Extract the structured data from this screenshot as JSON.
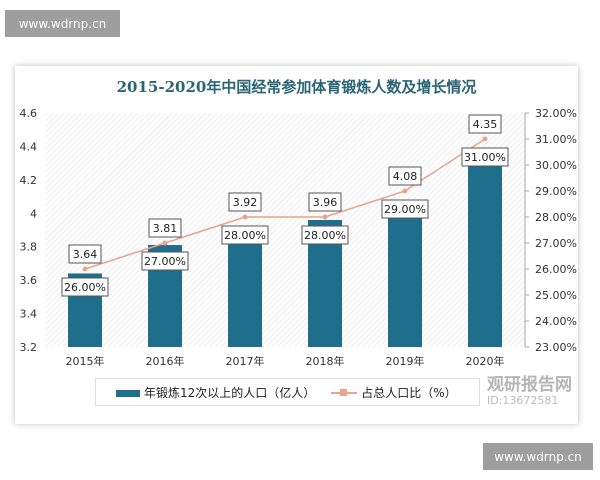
{
  "watermarks": {
    "top": "www.wdrnp.cn",
    "bottom": "www.wdrnp.cn",
    "logo": "观研报告网",
    "logo_id": "ID:13672581"
  },
  "colors": {
    "bar": "#1f6e8c",
    "line": "#e8a48c",
    "title": "#2a6475"
  },
  "chart_data": {
    "type": "bar+line",
    "title": "2015-2020年中国经常参加体育锻炼人数及增长情况",
    "categories": [
      "2015年",
      "2016年",
      "2017年",
      "2018年",
      "2019年",
      "2020年"
    ],
    "series": [
      {
        "name": "年锻炼12次以上的人口（亿人）",
        "type": "bar",
        "axis": "left",
        "values": [
          3.64,
          3.81,
          3.92,
          3.96,
          4.08,
          4.35
        ],
        "labels": [
          "3.64",
          "3.81",
          "3.92",
          "3.96",
          "4.08",
          "4.35"
        ]
      },
      {
        "name": "占总人口比（%）",
        "type": "line",
        "axis": "right",
        "values": [
          26,
          27,
          28,
          28,
          29,
          31
        ],
        "labels": [
          "26.00%",
          "27.00%",
          "28.00%",
          "28.00%",
          "29.00%",
          "31.00%"
        ]
      }
    ],
    "left_axis": {
      "range": [
        3.2,
        4.6
      ],
      "ticks": [
        "3.2",
        "3.4",
        "3.6",
        "3.8",
        "4",
        "4.2",
        "4.4",
        "4.6"
      ]
    },
    "right_axis": {
      "range": [
        23,
        32
      ],
      "ticks": [
        "23.00%",
        "24.00%",
        "25.00%",
        "26.00%",
        "27.00%",
        "28.00%",
        "29.00%",
        "30.00%",
        "31.00%",
        "32.00%"
      ]
    },
    "legend": "bottom",
    "grid": false
  }
}
